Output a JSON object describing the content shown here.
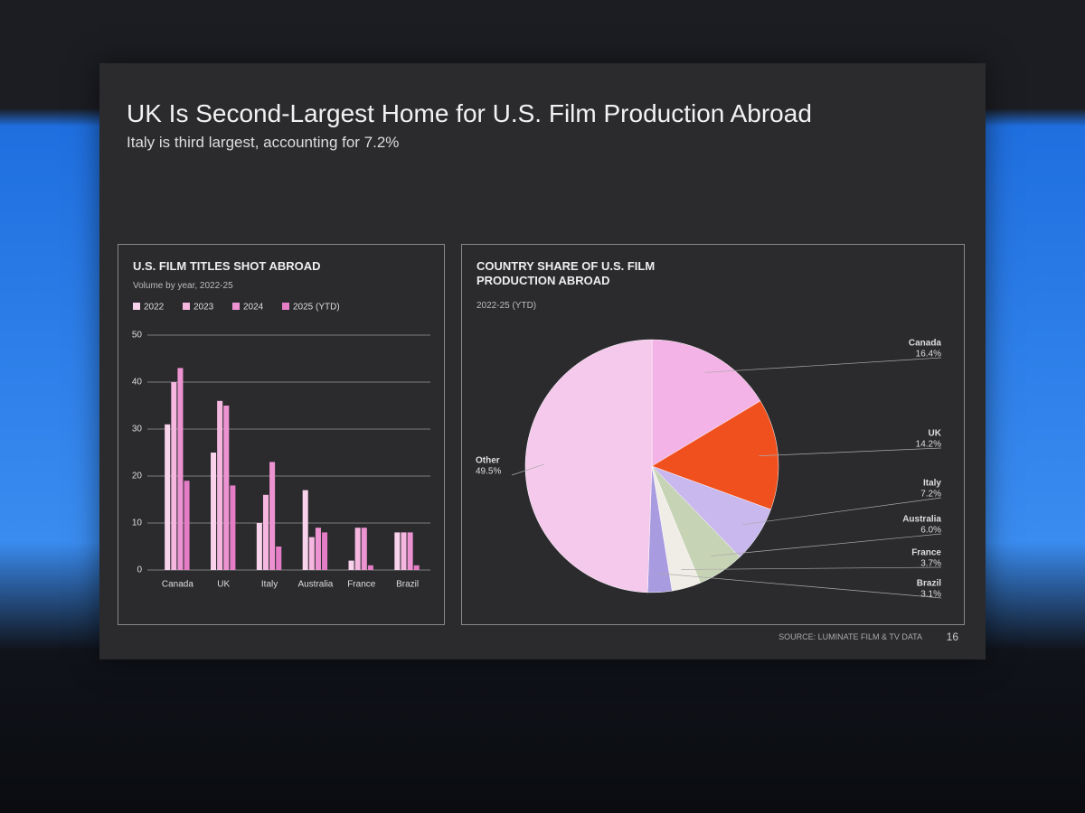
{
  "slide_title": "UK Is Second-Largest Home for U.S. Film Production Abroad",
  "slide_subtitle": "Italy is third largest, accounting for 7.2%",
  "source": "SOURCE: LUMINATE FILM & TV DATA",
  "page_number": "16",
  "chart_data": [
    {
      "type": "bar",
      "title": "U.S. FILM TITLES SHOT ABROAD",
      "subtitle": "Volume by year, 2022-25",
      "categories": [
        "Canada",
        "UK",
        "Italy",
        "Australia",
        "France",
        "Brazil"
      ],
      "series": [
        {
          "name": "2022",
          "color": "#f9d3ec",
          "values": [
            31,
            25,
            10,
            17,
            2,
            8
          ]
        },
        {
          "name": "2023",
          "color": "#f5b6e0",
          "values": [
            40,
            36,
            16,
            7,
            9,
            8
          ]
        },
        {
          "name": "2024",
          "color": "#ee93d2",
          "values": [
            43,
            35,
            23,
            9,
            9,
            8
          ]
        },
        {
          "name": "2025 (YTD)",
          "color": "#e47cc6",
          "values": [
            19,
            18,
            5,
            8,
            1,
            1
          ]
        }
      ],
      "ylim": [
        0,
        50
      ],
      "yticks": [
        0,
        10,
        20,
        30,
        40,
        50
      ],
      "grid": true
    },
    {
      "type": "pie",
      "title": "COUNTRY SHARE OF U.S. FILM PRODUCTION ABROAD",
      "subtitle": "2022-25 (YTD)",
      "categories": [
        "Canada",
        "UK",
        "Italy",
        "Australia",
        "France",
        "Brazil",
        "Other"
      ],
      "values": [
        16.4,
        14.2,
        7.2,
        6.0,
        3.7,
        3.1,
        49.5
      ],
      "value_labels": [
        "16.4%",
        "14.2%",
        "7.2%",
        "6.0%",
        "3.7%",
        "3.1%",
        "49.5%"
      ],
      "colors": [
        "#f3b3e6",
        "#f0501e",
        "#c9b8ee",
        "#c7d3b5",
        "#f0ece6",
        "#a99be0",
        "#f5c9ec"
      ]
    }
  ]
}
